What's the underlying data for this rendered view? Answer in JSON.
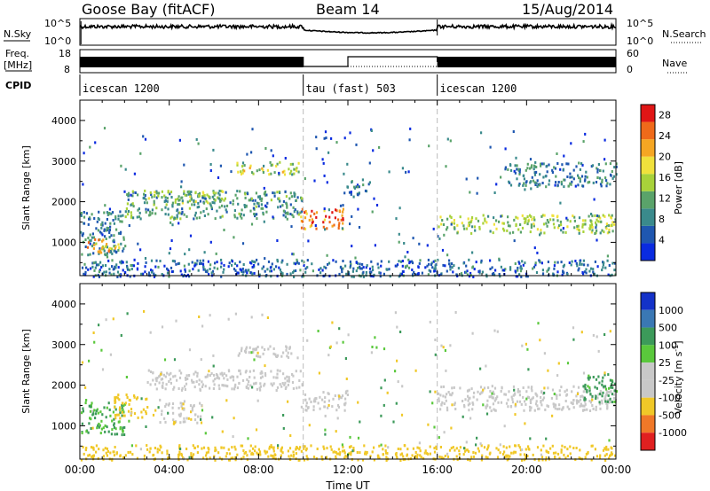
{
  "header": {
    "station": "Goose Bay (fitACF)",
    "beam": "Beam 14",
    "date": "15/Aug/2014"
  },
  "strip_labels": {
    "nsky": "N.Sky",
    "nsky_tick_hi": "10^5",
    "nsky_tick_lo": "10^0",
    "nsearch": "N.Search",
    "nsearch_tick_hi": "10^5",
    "nsearch_tick_lo": "10^0",
    "freq_top": "Freq.",
    "freq_unit": "[MHz]",
    "freq_tick_hi": "18",
    "freq_tick_lo": "8",
    "nave": "Nave",
    "nave_tick_hi": "60",
    "nave_tick_lo": "0",
    "cpid": "CPID"
  },
  "cpid_segments": [
    {
      "label": "icescan 1200",
      "start_h": 0,
      "end_h": 10
    },
    {
      "label": "tau (fast) 503",
      "start_h": 10,
      "end_h": 16
    },
    {
      "label": "icescan 1200",
      "start_h": 16,
      "end_h": 24
    }
  ],
  "colors": {
    "power_scale": [
      "#0a2be0",
      "#1f57b0",
      "#3a8a8c",
      "#5aa36a",
      "#a8d23a",
      "#f0e13c",
      "#f5a623",
      "#ef6a1a",
      "#e01616"
    ],
    "velocity_scale": [
      "#1432c8",
      "#3a78b4",
      "#3c9a5a",
      "#5ac83c",
      "#c8c8c8",
      "#c8c8c8",
      "#f0c828",
      "#f07828",
      "#e02020"
    ],
    "ground_scatter": "#b4b4b4"
  },
  "chart_data": [
    {
      "type": "heatmap",
      "name": "power",
      "title": "",
      "xlabel": "Time UT",
      "ylabel": "Slant Range [km]",
      "xlim": [
        0,
        24
      ],
      "ylim": [
        180,
        4500
      ],
      "x_ticks": [
        "00:00",
        "04:00",
        "08:00",
        "12:00",
        "16:00",
        "20:00",
        "00:00"
      ],
      "y_ticks": [
        1000,
        2000,
        3000,
        4000
      ],
      "colorbar_label": "Power [dB]",
      "colorbar_ticks": [
        "4",
        "8",
        "12",
        "16",
        "20",
        "24",
        "28"
      ],
      "colorbar_range": [
        0,
        30
      ],
      "echo_regions": [
        {
          "t0": 0.0,
          "t1": 2.0,
          "r0": 700,
          "r1": 1800,
          "value": 8
        },
        {
          "t0": 0.3,
          "t1": 1.8,
          "r0": 750,
          "r1": 1100,
          "value": 20
        },
        {
          "t0": 2.0,
          "t1": 10.0,
          "r0": 1600,
          "r1": 2300,
          "value": 10
        },
        {
          "t0": 3.0,
          "t1": 6.5,
          "r0": 2000,
          "r1": 2300,
          "value": 14
        },
        {
          "t0": 7.0,
          "t1": 9.8,
          "r0": 2700,
          "r1": 3000,
          "value": 16
        },
        {
          "t0": 9.8,
          "t1": 11.8,
          "r0": 1350,
          "r1": 1850,
          "value": 24
        },
        {
          "t0": 11.8,
          "t1": 13.0,
          "r0": 2200,
          "r1": 2600,
          "value": 6
        },
        {
          "t0": 16.0,
          "t1": 24.0,
          "r0": 1250,
          "r1": 1700,
          "value": 14
        },
        {
          "t0": 19.0,
          "t1": 24.0,
          "r0": 2400,
          "r1": 3000,
          "value": 8
        },
        {
          "t0": 0.0,
          "t1": 24.0,
          "r0": 180,
          "r1": 600,
          "value": 6
        }
      ]
    },
    {
      "type": "heatmap",
      "name": "velocity",
      "title": "",
      "xlabel": "Time UT",
      "ylabel": "Slant Range [km]",
      "xlim": [
        0,
        24
      ],
      "ylim": [
        180,
        4500
      ],
      "x_ticks": [
        "00:00",
        "04:00",
        "08:00",
        "12:00",
        "16:00",
        "20:00",
        "00:00"
      ],
      "y_ticks": [
        1000,
        2000,
        3000,
        4000
      ],
      "colorbar_label": "Velocity [m s^-1]",
      "colorbar_ticks": [
        "1000",
        "500",
        "100",
        "25",
        "-25",
        "-100",
        "-500",
        "-1000"
      ],
      "echo_regions": [
        {
          "t0": 0.0,
          "t1": 2.0,
          "r0": 800,
          "r1": 1600,
          "value": 100
        },
        {
          "t0": 1.5,
          "t1": 3.0,
          "r0": 1200,
          "r1": 1800,
          "value": -300
        },
        {
          "t0": 3.5,
          "t1": 5.5,
          "r0": 1100,
          "r1": 1600,
          "value": -80
        },
        {
          "t0": 3.0,
          "t1": 10.0,
          "r0": 1900,
          "r1": 2400,
          "value": 0
        },
        {
          "t0": 7.0,
          "t1": 9.8,
          "r0": 2700,
          "r1": 3000,
          "value": 0
        },
        {
          "t0": 10.0,
          "t1": 12.0,
          "r0": 1400,
          "r1": 1900,
          "value": 0
        },
        {
          "t0": 16.0,
          "t1": 24.0,
          "r0": 1400,
          "r1": 2000,
          "value": 0
        },
        {
          "t0": 22.5,
          "t1": 24.0,
          "r0": 1600,
          "r1": 2300,
          "value": 150
        },
        {
          "t0": 0.0,
          "t1": 24.0,
          "r0": 180,
          "r1": 550,
          "value": -200
        }
      ]
    }
  ]
}
